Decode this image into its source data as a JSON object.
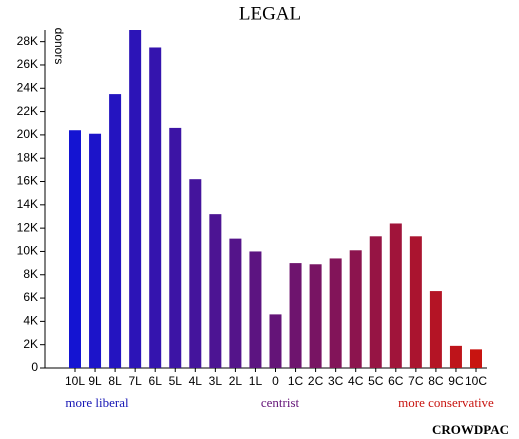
{
  "chart_data": {
    "type": "bar",
    "title": "LEGAL",
    "y_label": "donors",
    "categories": [
      "10L",
      "9L",
      "8L",
      "7L",
      "6L",
      "5L",
      "4L",
      "3L",
      "2L",
      "1L",
      "0",
      "1C",
      "2C",
      "3C",
      "4C",
      "5C",
      "6C",
      "7C",
      "8C",
      "9C",
      "10C"
    ],
    "values": [
      20400,
      20100,
      23500,
      29000,
      27500,
      20600,
      16200,
      13200,
      11100,
      10000,
      4600,
      9000,
      8900,
      9400,
      10100,
      11300,
      12400,
      11300,
      6600,
      1900,
      1600
    ],
    "colors": [
      "#1414d2",
      "#1c14c9",
      "#2414c0",
      "#2c14b7",
      "#3414ae",
      "#3c14a5",
      "#44149c",
      "#4c1493",
      "#54148a",
      "#5c1481",
      "#641478",
      "#6e146e",
      "#781463",
      "#821459",
      "#8c144e",
      "#961444",
      "#a0143a",
      "#aa142f",
      "#b41425",
      "#be141a",
      "#c81410"
    ],
    "ylim": [
      0,
      29000
    ],
    "yticks": [
      0,
      {
        "value": 2000,
        "label": "2K"
      },
      {
        "value": 4000,
        "label": "4K"
      },
      {
        "value": 6000,
        "label": "6K"
      },
      {
        "value": 8000,
        "label": "8K"
      },
      {
        "value": 10000,
        "label": "10K"
      },
      {
        "value": 12000,
        "label": "12K"
      },
      {
        "value": 14000,
        "label": "14K"
      },
      {
        "value": 16000,
        "label": "16K"
      },
      {
        "value": 18000,
        "label": "18K"
      },
      {
        "value": 20000,
        "label": "20K"
      },
      {
        "value": 22000,
        "label": "22K"
      },
      {
        "value": 24000,
        "label": "24K"
      },
      {
        "value": 26000,
        "label": "26K"
      },
      {
        "value": 28000,
        "label": "28K"
      }
    ],
    "annotations": [
      {
        "text": "more liberal",
        "color": "#1414b4"
      },
      {
        "text": "centrist",
        "color": "#641478"
      },
      {
        "text": "more conservative",
        "color": "#c81410"
      }
    ],
    "credit": "CROWDPAC"
  }
}
